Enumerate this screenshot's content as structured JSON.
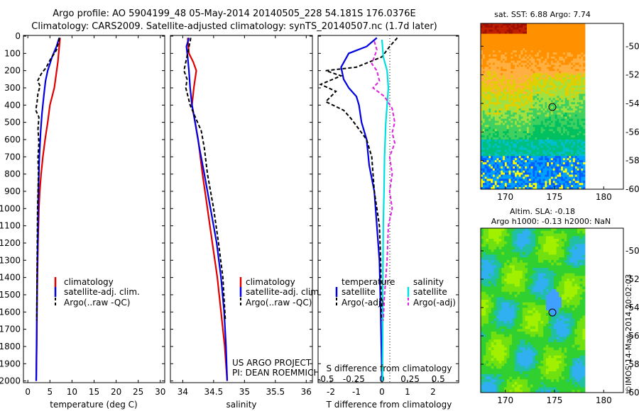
{
  "header": {
    "line1": "Argo profile: AO 5904199_48 05-May-2014 20140505_228 54.181S 176.0376E",
    "line2": "Climatology: CARS2009. Satellite-adjusted climatology: synTS_20140507.nc (1.7d later)"
  },
  "colors": {
    "climatology": "#e00000",
    "satellite": "#0000e0",
    "argo": "#000000",
    "satellite_s": "#00e0e0",
    "argo_s": "#e020e0"
  },
  "chart_data": [
    {
      "type": "line",
      "name": "temperature",
      "xlabel": "temperature (deg C)",
      "ylabel": "",
      "xlim": [
        -1,
        31
      ],
      "ylim": [
        2050,
        0
      ],
      "xticks": [
        "0",
        "5",
        "10",
        "15",
        "20",
        "25",
        "30"
      ],
      "yticks": [
        "0",
        "100",
        "200",
        "300",
        "400",
        "500",
        "600",
        "700",
        "800",
        "900",
        "1000",
        "1100",
        "1200",
        "1300",
        "1400",
        "1500",
        "1600",
        "1700",
        "1800",
        "1900",
        "2000"
      ],
      "legend": [
        "climatology",
        "satellite-adj. clim.",
        "Argo(..raw -QC)"
      ],
      "series": [
        {
          "name": "climatology",
          "color": "#e00000",
          "dash": "",
          "points": [
            [
              7.3,
              10
            ],
            [
              6.8,
              150
            ],
            [
              6.0,
              300
            ],
            [
              5.0,
              400
            ],
            [
              4.5,
              500
            ],
            [
              3.9,
              600
            ],
            [
              3.4,
              700
            ],
            [
              3.0,
              800
            ],
            [
              2.7,
              900
            ],
            [
              2.5,
              1000
            ],
            [
              2.3,
              1200
            ],
            [
              2.1,
              1500
            ],
            [
              2.0,
              1800
            ],
            [
              1.9,
              2000
            ]
          ]
        },
        {
          "name": "satellite-adj. clim.",
          "color": "#0000e0",
          "dash": "",
          "points": [
            [
              7.1,
              10
            ],
            [
              6.5,
              60
            ],
            [
              5.5,
              120
            ],
            [
              4.5,
              200
            ],
            [
              4.0,
              260
            ],
            [
              3.6,
              350
            ],
            [
              3.2,
              450
            ],
            [
              2.9,
              550
            ],
            [
              2.6,
              700
            ],
            [
              2.4,
              900
            ],
            [
              2.3,
              1100
            ],
            [
              2.1,
              1400
            ],
            [
              2.0,
              1700
            ],
            [
              1.9,
              2000
            ]
          ]
        },
        {
          "name": "Argo(..raw -QC)",
          "color": "#000000",
          "dash": "5,3",
          "points": [
            [
              7.2,
              10
            ],
            [
              6.5,
              80
            ],
            [
              5.0,
              140
            ],
            [
              4.2,
              180
            ],
            [
              3.0,
              220
            ],
            [
              2.2,
              260
            ],
            [
              2.8,
              290
            ],
            [
              2.3,
              330
            ],
            [
              2.1,
              380
            ],
            [
              1.8,
              430
            ],
            [
              2.5,
              470
            ],
            [
              2.3,
              540
            ],
            [
              2.5,
              620
            ],
            [
              2.3,
              700
            ],
            [
              2.4,
              800
            ],
            [
              2.2,
              1000
            ],
            [
              2.1,
              1300
            ],
            [
              2.0,
              1650
            ]
          ]
        }
      ]
    },
    {
      "type": "line",
      "name": "salinity",
      "xlabel": "salinity",
      "ylabel": "",
      "xlim": [
        33.8,
        36.1
      ],
      "ylim": [
        2050,
        0
      ],
      "xticks": [
        "34",
        "34.5",
        "35",
        "35.5",
        "36"
      ],
      "legend": [
        "climatology",
        "satellite-adj. clim.",
        "Argo(..raw -QC)"
      ],
      "annotations": [
        "US ARGO PROJECT",
        "PI: DEAN ROEMMICH"
      ],
      "series": [
        {
          "name": "climatology",
          "color": "#e00000",
          "dash": "",
          "points": [
            [
              34.08,
              10
            ],
            [
              34.1,
              100
            ],
            [
              34.17,
              150
            ],
            [
              34.22,
              200
            ],
            [
              34.18,
              300
            ],
            [
              34.15,
              400
            ],
            [
              34.2,
              500
            ],
            [
              34.25,
              600
            ],
            [
              34.32,
              800
            ],
            [
              34.4,
              1000
            ],
            [
              34.48,
              1200
            ],
            [
              34.56,
              1400
            ],
            [
              34.62,
              1600
            ],
            [
              34.68,
              1800
            ],
            [
              34.72,
              2000
            ]
          ]
        },
        {
          "name": "satellite-adj. clim.",
          "color": "#0000e0",
          "dash": "",
          "points": [
            [
              34.1,
              10
            ],
            [
              34.06,
              60
            ],
            [
              34.08,
              120
            ],
            [
              34.1,
              200
            ],
            [
              34.12,
              300
            ],
            [
              34.15,
              400
            ],
            [
              34.2,
              500
            ],
            [
              34.27,
              650
            ],
            [
              34.35,
              800
            ],
            [
              34.45,
              1000
            ],
            [
              34.55,
              1200
            ],
            [
              34.62,
              1400
            ],
            [
              34.67,
              1600
            ],
            [
              34.7,
              1800
            ],
            [
              34.72,
              2000
            ]
          ]
        },
        {
          "name": "Argo(..raw -QC)",
          "color": "#000000",
          "dash": "5,3",
          "points": [
            [
              34.13,
              10
            ],
            [
              34.08,
              100
            ],
            [
              34.05,
              150
            ],
            [
              34.02,
              200
            ],
            [
              34.07,
              250
            ],
            [
              34.05,
              300
            ],
            [
              34.12,
              400
            ],
            [
              34.18,
              450
            ],
            [
              34.3,
              550
            ],
            [
              34.35,
              650
            ],
            [
              34.4,
              800
            ],
            [
              34.5,
              1000
            ],
            [
              34.58,
              1200
            ],
            [
              34.65,
              1400
            ],
            [
              34.69,
              1650
            ]
          ]
        }
      ]
    },
    {
      "type": "line",
      "name": "difference",
      "xlabel": "T difference from climatology",
      "xlabel_top": "S difference from climatology",
      "xlim": [
        -2.5,
        3
      ],
      "ylim": [
        2050,
        0
      ],
      "xticks": [
        "-2",
        "-1",
        "0",
        "1",
        "2"
      ],
      "xticks_s": [
        "-0.5",
        "-0.25",
        "0",
        "0.25",
        "0.5"
      ],
      "legend_groups": [
        {
          "title": "temperature",
          "items": [
            "satellite",
            "Argo(-adj)"
          ]
        },
        {
          "title": "salinity",
          "items": [
            "satellite",
            "Argo(-adj)"
          ]
        }
      ],
      "series": [
        {
          "name": "temperature satellite",
          "color": "#0000e0",
          "dash": "",
          "points": [
            [
              -0.2,
              10
            ],
            [
              -0.6,
              60
            ],
            [
              -1.3,
              100
            ],
            [
              -1.6,
              180
            ],
            [
              -1.5,
              250
            ],
            [
              -1.3,
              300
            ],
            [
              -1.0,
              350
            ],
            [
              -0.9,
              400
            ],
            [
              -0.8,
              500
            ],
            [
              -0.6,
              600
            ],
            [
              -0.5,
              750
            ],
            [
              -0.3,
              900
            ],
            [
              -0.2,
              1100
            ],
            [
              -0.1,
              1300
            ],
            [
              -0.05,
              1600
            ],
            [
              0,
              2000
            ]
          ]
        },
        {
          "name": "temperature Argo(-adj)",
          "color": "#000000",
          "dash": "5,3",
          "points": [
            [
              0.6,
              10
            ],
            [
              0.3,
              60
            ],
            [
              0,
              120
            ],
            [
              -1.0,
              180
            ],
            [
              -2.2,
              200
            ],
            [
              -1.6,
              230
            ],
            [
              -2.4,
              280
            ],
            [
              -1.8,
              320
            ],
            [
              -2.2,
              380
            ],
            [
              -1.5,
              430
            ],
            [
              -1.2,
              480
            ],
            [
              -1.0,
              520
            ],
            [
              -0.6,
              600
            ],
            [
              -0.5,
              650
            ],
            [
              -0.4,
              700
            ],
            [
              -0.3,
              900
            ],
            [
              -0.1,
              1100
            ],
            [
              -0.05,
              1300
            ],
            [
              -0.02,
              1650
            ]
          ]
        },
        {
          "name": "salinity satellite",
          "color": "#00e0e0",
          "dash": "",
          "points": [
            [
              0,
              20
            ],
            [
              0.05,
              120
            ],
            [
              0.2,
              200
            ],
            [
              0.25,
              300
            ],
            [
              0.2,
              400
            ],
            [
              0.15,
              500
            ],
            [
              0.1,
              700
            ],
            [
              0.08,
              900
            ],
            [
              0.05,
              1100
            ],
            [
              0.03,
              1500
            ],
            [
              0.02,
              2000
            ]
          ]
        },
        {
          "name": "salinity Argo(-adj)",
          "color": "#e020e0",
          "dash": "5,3",
          "points": [
            [
              -0.3,
              30
            ],
            [
              -0.2,
              80
            ],
            [
              -0.4,
              160
            ],
            [
              -0.2,
              200
            ],
            [
              -0.1,
              260
            ],
            [
              -0.35,
              300
            ],
            [
              0.1,
              350
            ],
            [
              0.4,
              420
            ],
            [
              0.5,
              500
            ],
            [
              0.4,
              560
            ],
            [
              0.5,
              620
            ],
            [
              0.3,
              700
            ],
            [
              0.4,
              800
            ],
            [
              0.3,
              900
            ],
            [
              0.4,
              1000
            ],
            [
              0.25,
              1100
            ],
            [
              0.2,
              1300
            ],
            [
              0.1,
              1500
            ],
            [
              0.05,
              1650
            ]
          ]
        }
      ]
    },
    {
      "type": "heatmap",
      "name": "sst-map",
      "title": "sat. SST: 6.88 Argo: 7.74",
      "xlim": [
        167.5,
        182
      ],
      "ylim": [
        -60,
        -48.4
      ],
      "xticks": [
        "170",
        "175",
        "180"
      ],
      "yticks": [
        "-50",
        "-52",
        "-54",
        "-56",
        "-58",
        "-60"
      ],
      "marker": {
        "lon": 176.04,
        "lat": -54.18
      }
    },
    {
      "type": "heatmap",
      "name": "sla-map",
      "title_line1": "Altim. SLA: -0.18",
      "title_line2": "Argo h1000: -0.13 h2000: NaN",
      "xlim": [
        167.5,
        182
      ],
      "ylim": [
        -60,
        -48.4
      ],
      "xticks": [
        "170",
        "175",
        "180"
      ],
      "yticks": [
        "-50",
        "-52",
        "-54",
        "-56",
        "-58",
        "-60"
      ],
      "marker": {
        "lon": 176.04,
        "lat": -54.18
      }
    }
  ],
  "footer": {
    "stamp": "©IMOS 14-May-2014 20:02:03"
  }
}
